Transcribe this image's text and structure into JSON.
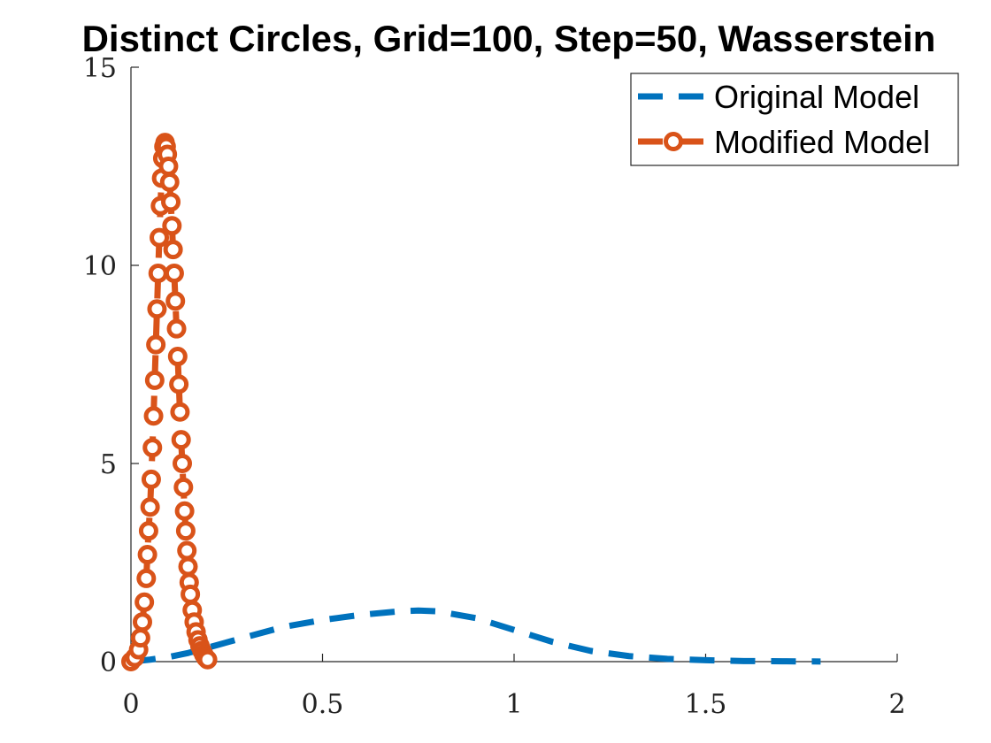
{
  "chart_data": {
    "type": "line",
    "title": "Distinct Circles, Grid=100, Step=50, Wasserstein",
    "xlabel": "",
    "ylabel": "",
    "xlim": [
      0,
      2
    ],
    "ylim": [
      0,
      15
    ],
    "xticks": [
      0,
      0.5,
      1,
      1.5,
      2
    ],
    "yticks": [
      0,
      5,
      10,
      15
    ],
    "xtick_labels": [
      "0",
      "0.5",
      "1",
      "1.5",
      "2"
    ],
    "ytick_labels": [
      "0",
      "5",
      "10",
      "15"
    ],
    "grid": false,
    "legend_position": "top-right",
    "series": [
      {
        "name": "Original Model",
        "color": "#0072BD",
        "style": "dashed",
        "marker": "none",
        "x": [
          0.0,
          0.05,
          0.1,
          0.15,
          0.2,
          0.3,
          0.4,
          0.5,
          0.6,
          0.7,
          0.75,
          0.8,
          0.9,
          1.0,
          1.1,
          1.2,
          1.3,
          1.4,
          1.5,
          1.6,
          1.7,
          1.8
        ],
        "y": [
          0.0,
          0.05,
          0.12,
          0.22,
          0.35,
          0.62,
          0.88,
          1.05,
          1.18,
          1.27,
          1.29,
          1.27,
          1.1,
          0.8,
          0.5,
          0.27,
          0.14,
          0.07,
          0.035,
          0.015,
          0.008,
          0.004
        ]
      },
      {
        "name": "Modified Model",
        "color": "#D95319",
        "style": "dashed",
        "marker": "circle",
        "x": [
          0.0,
          0.01,
          0.02,
          0.025,
          0.03,
          0.035,
          0.04,
          0.043,
          0.046,
          0.05,
          0.053,
          0.056,
          0.059,
          0.062,
          0.065,
          0.068,
          0.071,
          0.074,
          0.077,
          0.08,
          0.083,
          0.086,
          0.089,
          0.092,
          0.095,
          0.098,
          0.101,
          0.104,
          0.107,
          0.11,
          0.113,
          0.116,
          0.119,
          0.122,
          0.125,
          0.128,
          0.131,
          0.134,
          0.137,
          0.14,
          0.143,
          0.146,
          0.149,
          0.152,
          0.155,
          0.16,
          0.165,
          0.17,
          0.175,
          0.18,
          0.185,
          0.19,
          0.195,
          0.2
        ],
        "y": [
          0.0,
          0.1,
          0.3,
          0.6,
          1.0,
          1.5,
          2.1,
          2.7,
          3.3,
          3.9,
          4.6,
          5.4,
          6.2,
          7.1,
          8.0,
          8.9,
          9.8,
          10.7,
          11.5,
          12.2,
          12.7,
          13.0,
          13.1,
          13.0,
          12.8,
          12.5,
          12.1,
          11.6,
          11.0,
          10.4,
          9.8,
          9.1,
          8.4,
          7.7,
          7.0,
          6.3,
          5.6,
          5.0,
          4.4,
          3.8,
          3.3,
          2.8,
          2.4,
          2.0,
          1.7,
          1.3,
          1.0,
          0.75,
          0.55,
          0.4,
          0.28,
          0.18,
          0.1,
          0.05
        ]
      }
    ]
  }
}
